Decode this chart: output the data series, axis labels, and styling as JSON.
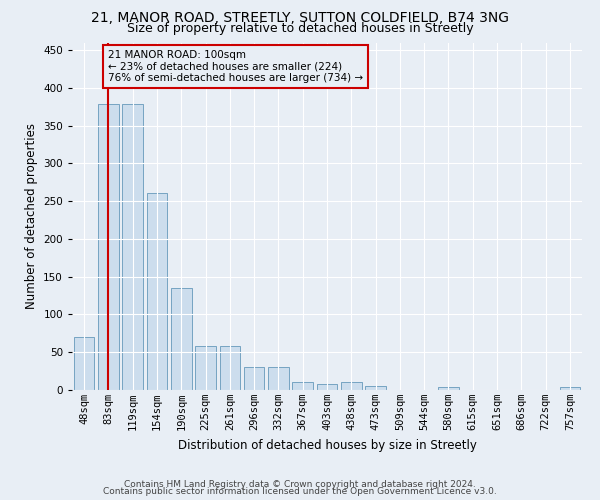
{
  "title1": "21, MANOR ROAD, STREETLY, SUTTON COLDFIELD, B74 3NG",
  "title2": "Size of property relative to detached houses in Streetly",
  "xlabel": "Distribution of detached houses by size in Streetly",
  "ylabel": "Number of detached properties",
  "footer1": "Contains HM Land Registry data © Crown copyright and database right 2024.",
  "footer2": "Contains public sector information licensed under the Open Government Licence v3.0.",
  "annotation_line1": "21 MANOR ROAD: 100sqm",
  "annotation_line2": "← 23% of detached houses are smaller (224)",
  "annotation_line3": "76% of semi-detached houses are larger (734) →",
  "bar_color": "#ccdded",
  "bar_edge_color": "#6699bb",
  "redline_color": "#cc0000",
  "annotation_box_color": "#cc0000",
  "bar_values": [
    70,
    378,
    378,
    261,
    135,
    58,
    58,
    30,
    30,
    10,
    8,
    10,
    5,
    0,
    0,
    4,
    0,
    0,
    0,
    0,
    4
  ],
  "bin_edges": [
    48,
    83,
    119,
    154,
    190,
    225,
    261,
    296,
    332,
    367,
    403,
    438,
    473,
    509,
    544,
    580,
    615,
    651,
    686,
    722,
    757
  ],
  "tick_labels": [
    "48sqm",
    "83sqm",
    "119sqm",
    "154sqm",
    "190sqm",
    "225sqm",
    "261sqm",
    "296sqm",
    "332sqm",
    "367sqm",
    "403sqm",
    "438sqm",
    "473sqm",
    "509sqm",
    "544sqm",
    "580sqm",
    "615sqm",
    "651sqm",
    "686sqm",
    "722sqm",
    "757sqm"
  ],
  "property_size": 100,
  "ylim": [
    0,
    460
  ],
  "yticks": [
    0,
    50,
    100,
    150,
    200,
    250,
    300,
    350,
    400,
    450
  ],
  "background_color": "#e8eef5",
  "grid_color": "#ffffff",
  "title_fontsize": 10,
  "subtitle_fontsize": 9,
  "axis_label_fontsize": 8.5,
  "tick_fontsize": 7.5,
  "annotation_fontsize": 7.5,
  "footer_fontsize": 6.5
}
